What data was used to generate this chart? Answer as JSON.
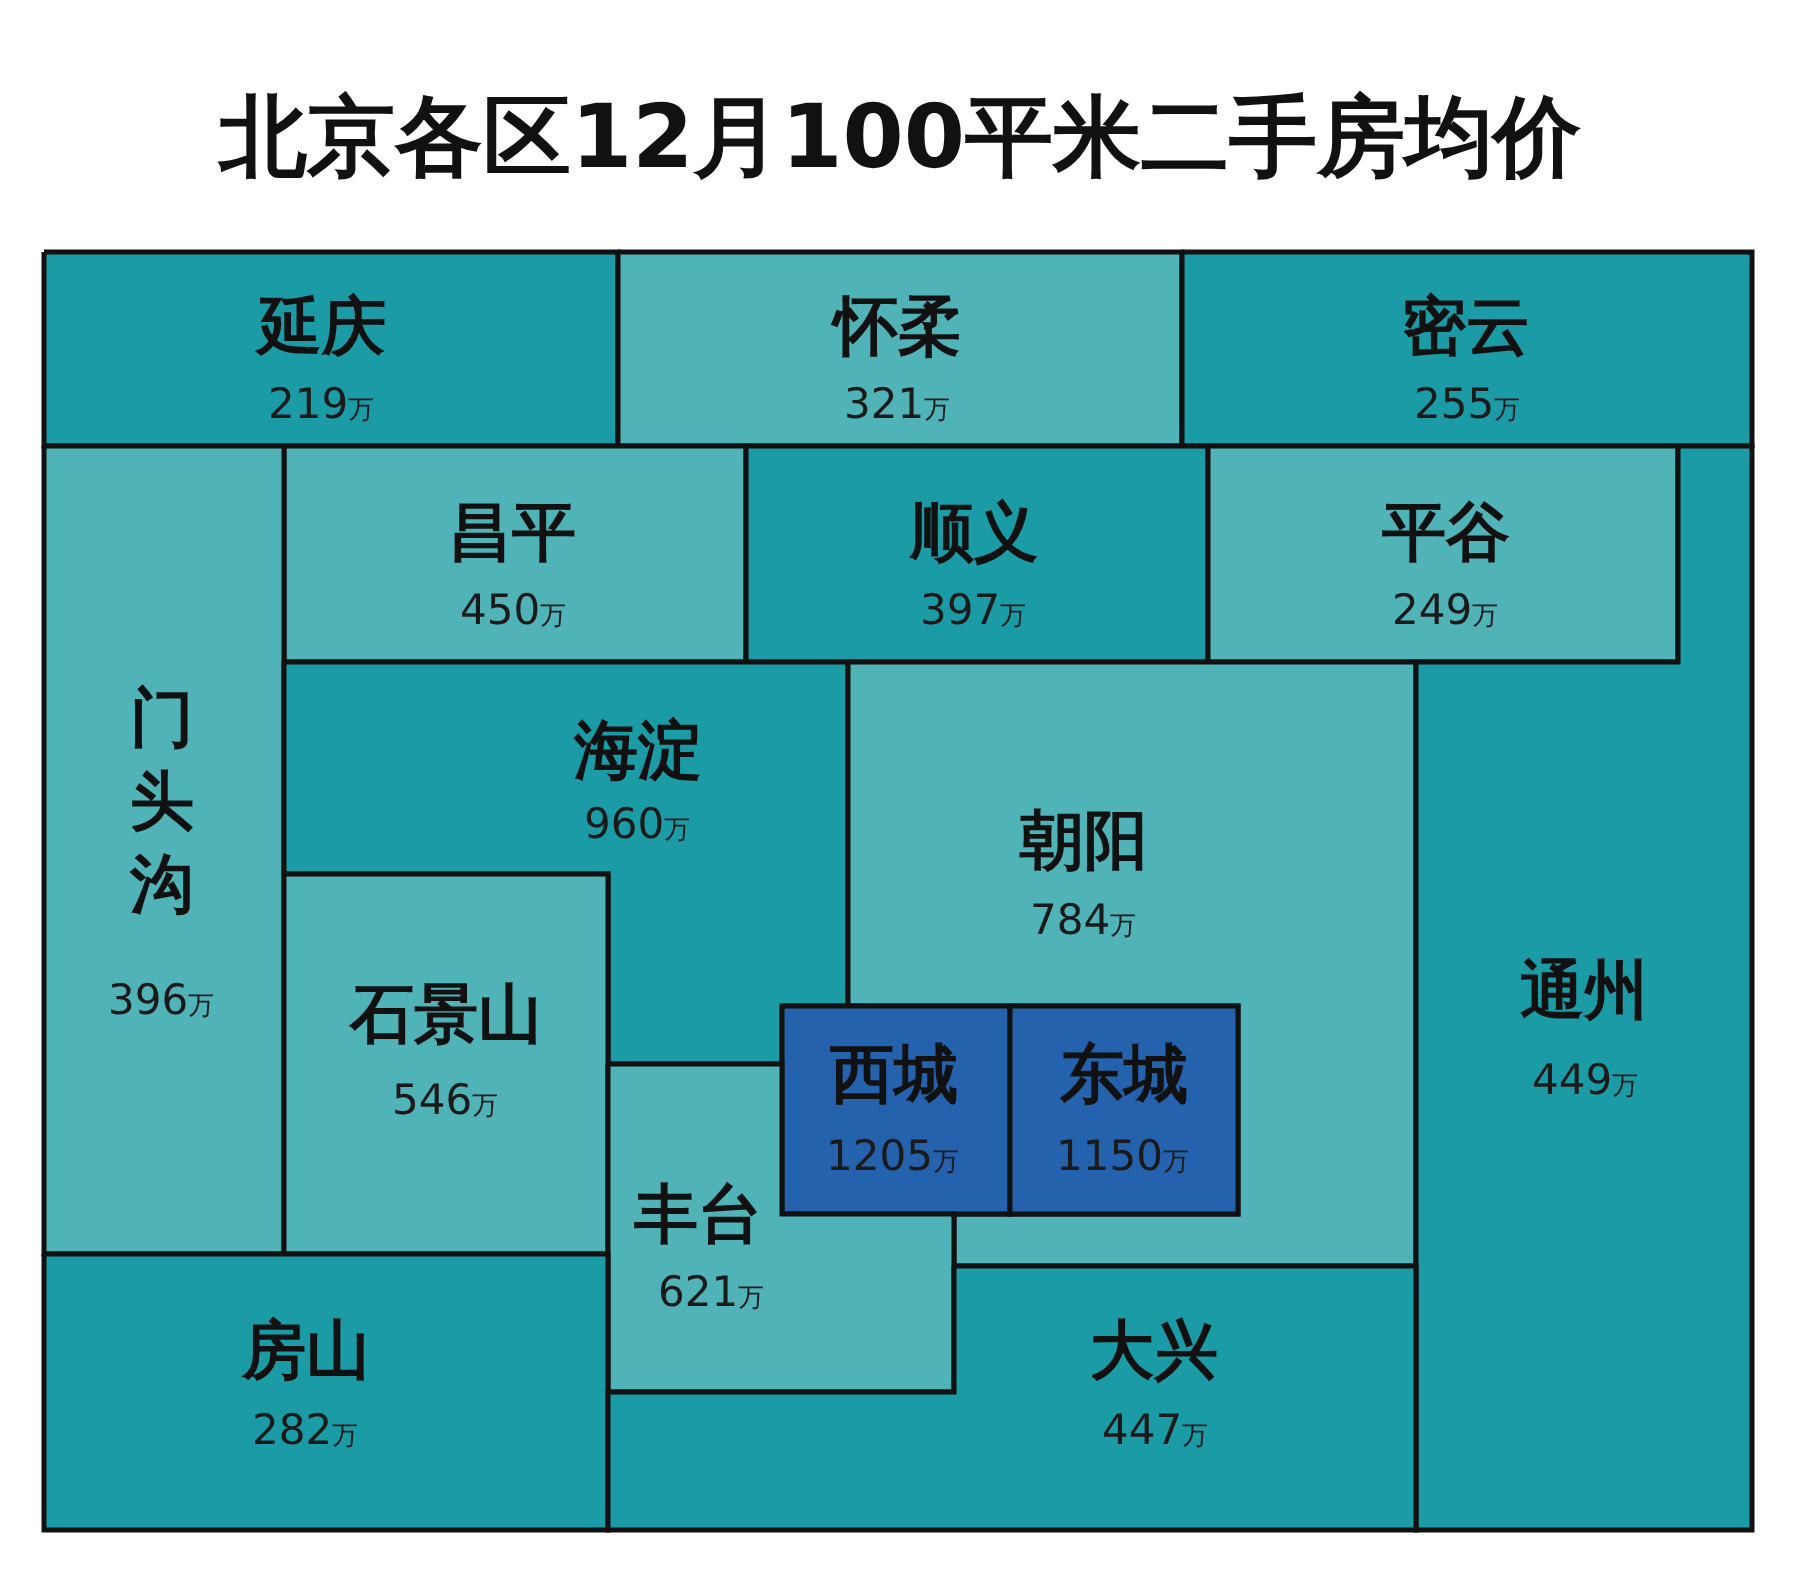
{
  "chart_data": {
    "type": "other",
    "title": "北京各区12月100平米二手房均价",
    "categories": [
      "延庆",
      "怀柔",
      "密云",
      "昌平",
      "顺义",
      "平谷",
      "门头沟",
      "海淀",
      "朝阳",
      "通州",
      "石景山",
      "西城",
      "东城",
      "丰台",
      "房山",
      "大兴"
    ],
    "values": [
      219,
      321,
      255,
      450,
      397,
      249,
      396,
      960,
      784,
      449,
      546,
      1205,
      1150,
      621,
      282,
      447
    ],
    "value_labels": [
      "219万",
      "321万",
      "255万",
      "450万",
      "397万",
      "249万",
      "396万",
      "960万",
      "784万",
      "449万",
      "546万",
      "1205万",
      "1150万",
      "621万",
      "282万",
      "447万"
    ],
    "colors": [
      "#1b9ba5",
      "#4fb3b7",
      "#1b9ba5",
      "#4fb3b7",
      "#1b9ba5",
      "#4fb3b7",
      "#4fb3b7",
      "#1b9ba5",
      "#4fb3b7",
      "#1b9ba5",
      "#4fb3b7",
      "#2462ad",
      "#2462ad",
      "#4fb3b7",
      "#1b9ba5",
      "#1b9ba5"
    ]
  }
}
